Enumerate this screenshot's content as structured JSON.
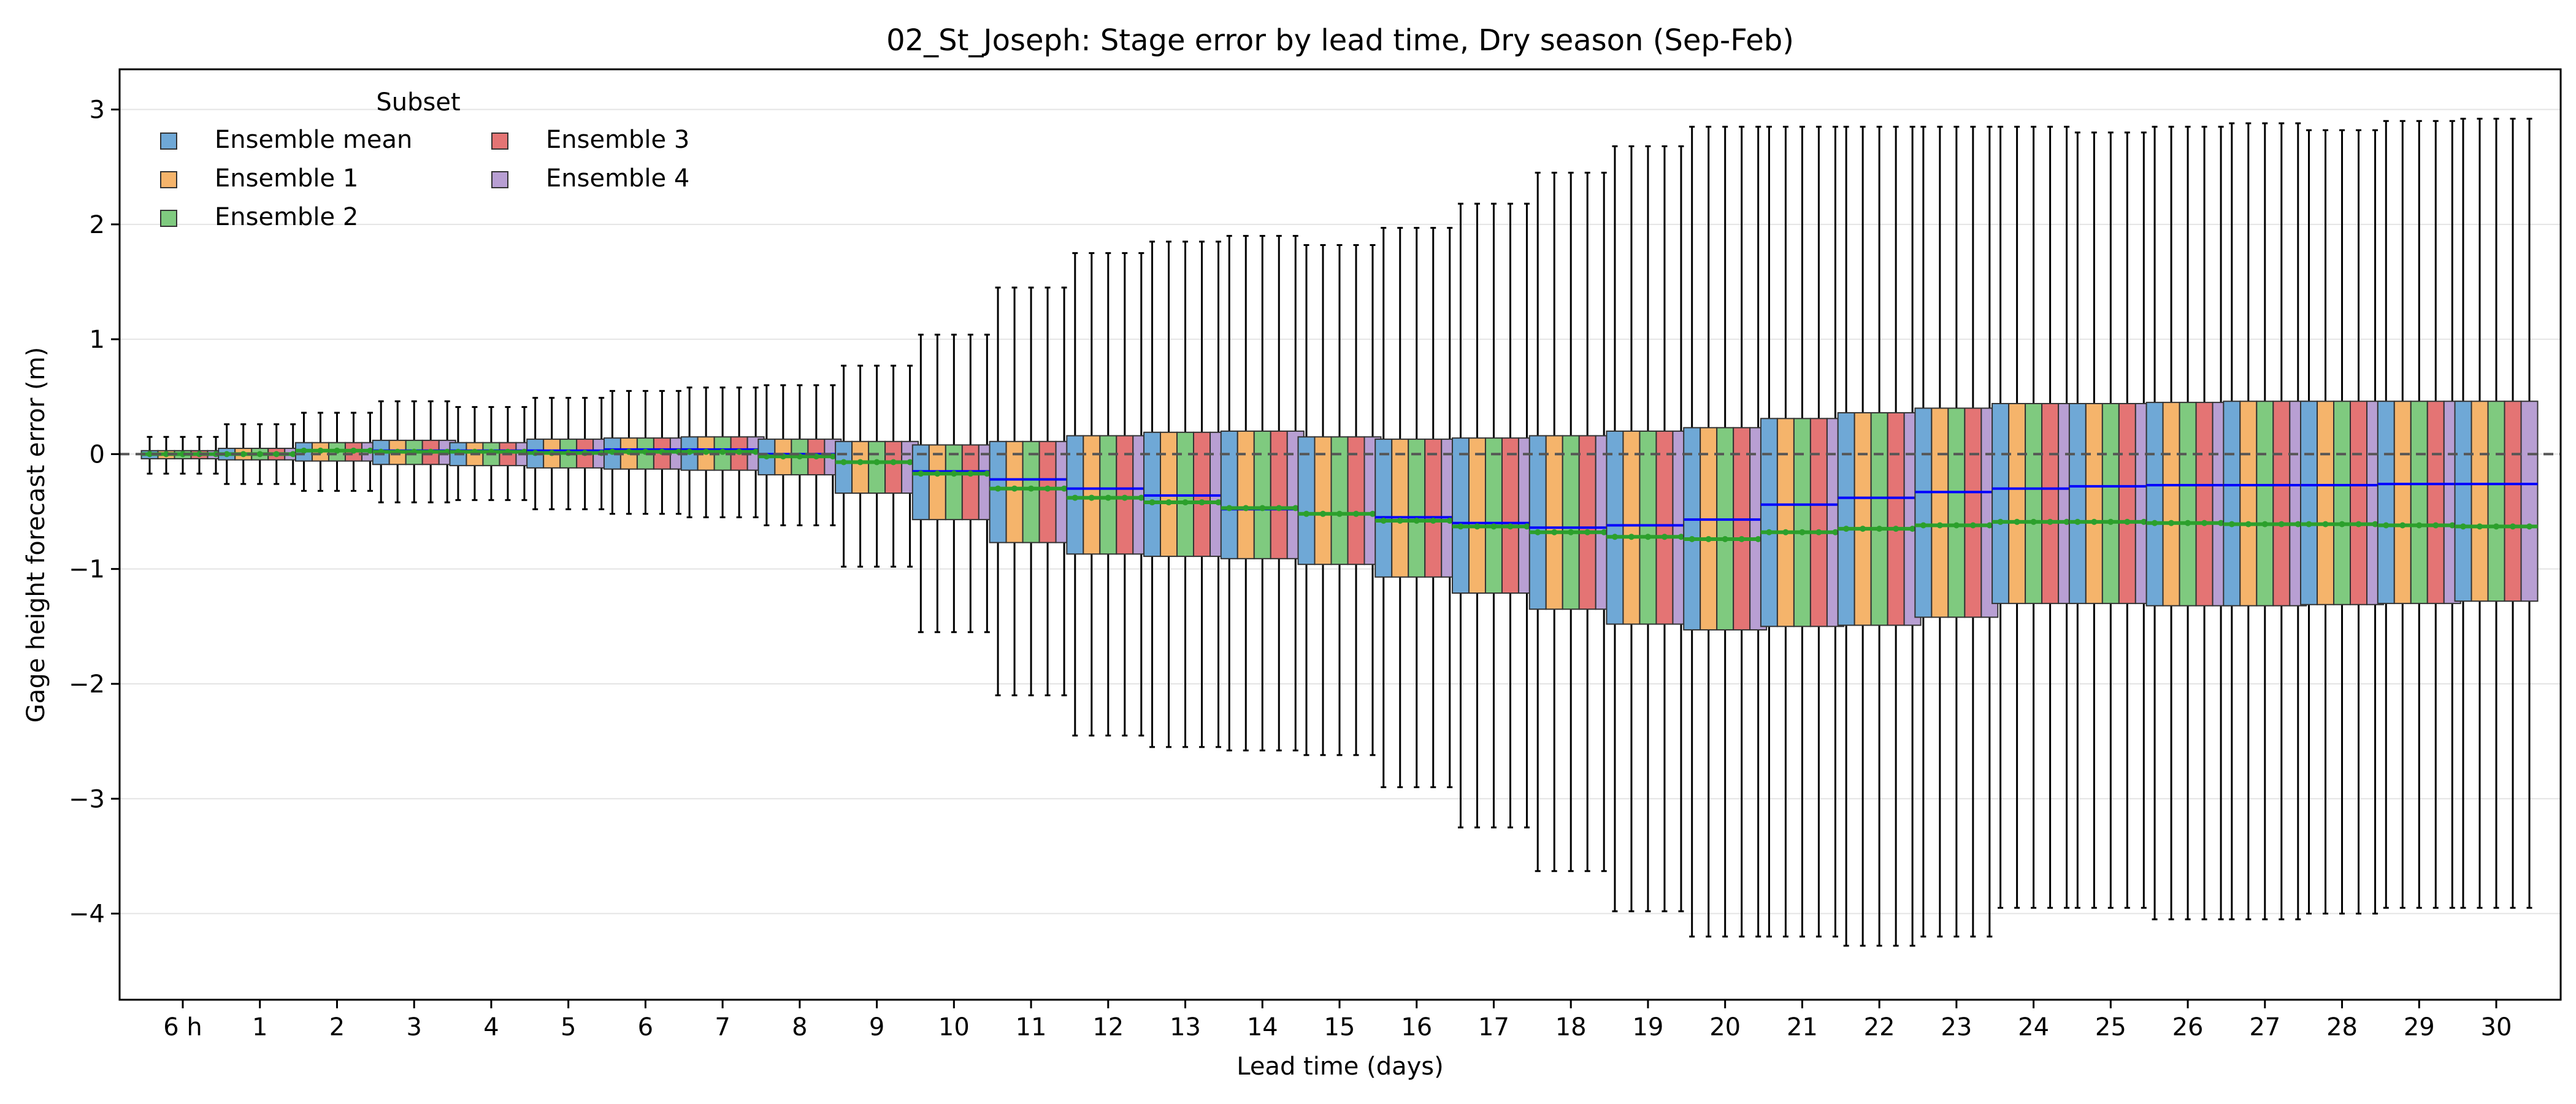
{
  "chart_data": {
    "type": "box",
    "title": "02_St_Joseph: Stage error by lead time, Dry season (Sep-Feb)",
    "xlabel": "Lead time (days)",
    "ylabel": "Gage height forecast error (m)",
    "ylim": [
      -4.75,
      3.35
    ],
    "yticks": [
      -4,
      -3,
      -2,
      -1,
      0,
      1,
      2,
      3
    ],
    "ytick_labels": [
      "−4",
      "−3",
      "−2",
      "−1",
      "0",
      "1",
      "2",
      "3"
    ],
    "grid": "horizontal",
    "reference_line": 0,
    "legend": {
      "title": "Subset",
      "placement": "top-left",
      "columns": 2
    },
    "categories": [
      "6 h",
      "1",
      "2",
      "3",
      "4",
      "5",
      "6",
      "7",
      "8",
      "9",
      "10",
      "11",
      "12",
      "13",
      "14",
      "15",
      "16",
      "17",
      "18",
      "19",
      "20",
      "21",
      "22",
      "23",
      "24",
      "25",
      "26",
      "27",
      "28",
      "29",
      "30"
    ],
    "series": [
      {
        "name": "Ensemble mean",
        "color": "#6fa8d6"
      },
      {
        "name": "Ensemble 1",
        "color": "#f5b46b"
      },
      {
        "name": "Ensemble 2",
        "color": "#7fca7f"
      },
      {
        "name": "Ensemble 3",
        "color": "#e47474"
      },
      {
        "name": "Ensemble 4",
        "color": "#b89fd3"
      }
    ],
    "mean_line_color": "#0000ff",
    "median_marker_color": "#2ca02c",
    "boxes": [
      {
        "whisker_low": -0.17,
        "q1": -0.04,
        "median": 0.0,
        "q3": 0.03,
        "whisker_high": 0.15,
        "mean": 0.0
      },
      {
        "whisker_low": -0.26,
        "q1": -0.05,
        "median": 0.0,
        "q3": 0.05,
        "whisker_high": 0.26,
        "mean": 0.0
      },
      {
        "whisker_low": -0.32,
        "q1": -0.06,
        "median": 0.03,
        "q3": 0.1,
        "whisker_high": 0.36,
        "mean": 0.03
      },
      {
        "whisker_low": -0.42,
        "q1": -0.09,
        "median": 0.02,
        "q3": 0.12,
        "whisker_high": 0.46,
        "mean": 0.03
      },
      {
        "whisker_low": -0.4,
        "q1": -0.1,
        "median": 0.02,
        "q3": 0.1,
        "whisker_high": 0.41,
        "mean": 0.03
      },
      {
        "whisker_low": -0.48,
        "q1": -0.12,
        "median": 0.01,
        "q3": 0.13,
        "whisker_high": 0.49,
        "mean": 0.03
      },
      {
        "whisker_low": -0.52,
        "q1": -0.13,
        "median": 0.02,
        "q3": 0.14,
        "whisker_high": 0.55,
        "mean": 0.04
      },
      {
        "whisker_low": -0.55,
        "q1": -0.14,
        "median": 0.02,
        "q3": 0.15,
        "whisker_high": 0.58,
        "mean": 0.04
      },
      {
        "whisker_low": -0.62,
        "q1": -0.18,
        "median": -0.02,
        "q3": 0.13,
        "whisker_high": 0.6,
        "mean": 0.0
      },
      {
        "whisker_low": -0.98,
        "q1": -0.34,
        "median": -0.07,
        "q3": 0.11,
        "whisker_high": 0.77,
        "mean": -0.07
      },
      {
        "whisker_low": -1.55,
        "q1": -0.57,
        "median": -0.17,
        "q3": 0.08,
        "whisker_high": 1.04,
        "mean": -0.15
      },
      {
        "whisker_low": -2.1,
        "q1": -0.77,
        "median": -0.3,
        "q3": 0.11,
        "whisker_high": 1.45,
        "mean": -0.22
      },
      {
        "whisker_low": -2.45,
        "q1": -0.87,
        "median": -0.38,
        "q3": 0.16,
        "whisker_high": 1.75,
        "mean": -0.3
      },
      {
        "whisker_low": -2.55,
        "q1": -0.89,
        "median": -0.42,
        "q3": 0.19,
        "whisker_high": 1.85,
        "mean": -0.36
      },
      {
        "whisker_low": -2.58,
        "q1": -0.91,
        "median": -0.47,
        "q3": 0.2,
        "whisker_high": 1.9,
        "mean": -0.48
      },
      {
        "whisker_low": -2.62,
        "q1": -0.96,
        "median": -0.52,
        "q3": 0.15,
        "whisker_high": 1.82,
        "mean": -0.52
      },
      {
        "whisker_low": -2.9,
        "q1": -1.07,
        "median": -0.58,
        "q3": 0.13,
        "whisker_high": 1.97,
        "mean": -0.55
      },
      {
        "whisker_low": -3.25,
        "q1": -1.21,
        "median": -0.63,
        "q3": 0.14,
        "whisker_high": 2.18,
        "mean": -0.6
      },
      {
        "whisker_low": -3.63,
        "q1": -1.35,
        "median": -0.68,
        "q3": 0.16,
        "whisker_high": 2.45,
        "mean": -0.64
      },
      {
        "whisker_low": -3.98,
        "q1": -1.48,
        "median": -0.72,
        "q3": 0.2,
        "whisker_high": 2.68,
        "mean": -0.62
      },
      {
        "whisker_low": -4.2,
        "q1": -1.53,
        "median": -0.74,
        "q3": 0.23,
        "whisker_high": 2.85,
        "mean": -0.57
      },
      {
        "whisker_low": -4.2,
        "q1": -1.5,
        "median": -0.68,
        "q3": 0.31,
        "whisker_high": 2.85,
        "mean": -0.44
      },
      {
        "whisker_low": -4.28,
        "q1": -1.49,
        "median": -0.65,
        "q3": 0.36,
        "whisker_high": 2.85,
        "mean": -0.38
      },
      {
        "whisker_low": -4.2,
        "q1": -1.42,
        "median": -0.62,
        "q3": 0.4,
        "whisker_high": 2.85,
        "mean": -0.33
      },
      {
        "whisker_low": -3.95,
        "q1": -1.3,
        "median": -0.59,
        "q3": 0.44,
        "whisker_high": 2.85,
        "mean": -0.3
      },
      {
        "whisker_low": -3.95,
        "q1": -1.3,
        "median": -0.59,
        "q3": 0.44,
        "whisker_high": 2.8,
        "mean": -0.28
      },
      {
        "whisker_low": -4.05,
        "q1": -1.32,
        "median": -0.6,
        "q3": 0.45,
        "whisker_high": 2.85,
        "mean": -0.27
      },
      {
        "whisker_low": -4.05,
        "q1": -1.32,
        "median": -0.61,
        "q3": 0.46,
        "whisker_high": 2.88,
        "mean": -0.27
      },
      {
        "whisker_low": -4.0,
        "q1": -1.31,
        "median": -0.61,
        "q3": 0.46,
        "whisker_high": 2.82,
        "mean": -0.27
      },
      {
        "whisker_low": -3.95,
        "q1": -1.3,
        "median": -0.62,
        "q3": 0.46,
        "whisker_high": 2.9,
        "mean": -0.26
      },
      {
        "whisker_low": -3.95,
        "q1": -1.28,
        "median": -0.63,
        "q3": 0.46,
        "whisker_high": 2.92,
        "mean": -0.26
      }
    ]
  }
}
